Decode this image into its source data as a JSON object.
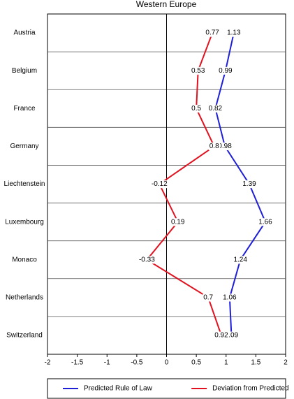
{
  "chart_data": {
    "type": "line",
    "orientation": "horizontal",
    "title": "Western Europe",
    "categories": [
      "Austria",
      "Belgium",
      "France",
      "Germany",
      "Liechtenstein",
      "Luxembourg",
      "Monaco",
      "Netherlands",
      "Switzerland"
    ],
    "series": [
      {
        "name": "Predicted Rule of Law",
        "color": "#1f1fd6",
        "values": [
          1.13,
          0.99,
          0.82,
          0.98,
          1.39,
          1.66,
          1.24,
          1.06,
          1.09
        ]
      },
      {
        "name": "Deviation from Predicted",
        "color": "#e0121f",
        "values": [
          0.77,
          0.53,
          0.5,
          0.8,
          -0.12,
          0.19,
          -0.33,
          0.7,
          0.92
        ]
      }
    ],
    "xlim": [
      -2,
      2
    ],
    "xticks": [
      -2,
      -1.5,
      -1,
      -0.5,
      0,
      0.5,
      1,
      1.5,
      2
    ],
    "grid": true,
    "legend": "bottom"
  }
}
